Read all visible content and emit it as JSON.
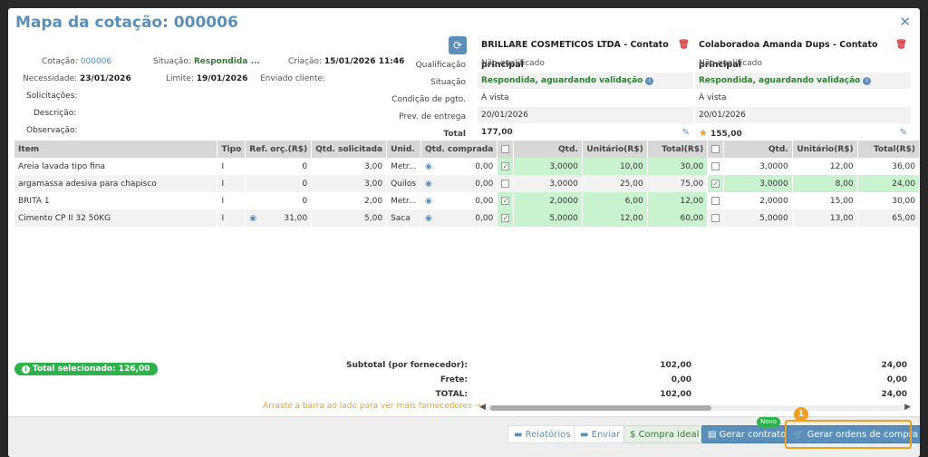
{
  "title": "Mapa da cotação: 000006",
  "header": {
    "cotacao_label": "Cotação:",
    "cotacao_value": "000006",
    "situacao_label": "Situação:",
    "situacao_value": "Respondida ...",
    "criacao_label": "Criação:",
    "criacao_value": "15/01/2026 11:46",
    "necessidade_label": "Necessidade:",
    "necessidade_value": "23/01/2026",
    "limite_label": "Limite:",
    "limite_value": "19/01/2026",
    "enviado_label": "Enviado cliente:",
    "solicitacoes_label": "Solicitações:",
    "descricao_label": "Descrição:",
    "observacao_label": "Observação:"
  },
  "qlabels": [
    "Qualificação",
    "Situação",
    "Condição de pgto.",
    "Prev. de entrega",
    "Total"
  ],
  "suppliers": [
    {
      "name": "BRILLARE COSMETICOS LTDA - Contato principal",
      "qualificacao": "Não qualificado",
      "situacao": "Respondida, aguardando validação",
      "condicao": "À vista",
      "entrega": "20/01/2026",
      "total": "177,00"
    },
    {
      "name": "Colaboradoa Amanda Dups - Contato principal",
      "qualificacao": "Não qualificado",
      "situacao": "Respondida, aguardando validação",
      "condicao": "À vista",
      "entrega": "20/01/2026",
      "total": "155,00"
    }
  ],
  "columns": {
    "item": "Item",
    "tipo": "Tipo",
    "ref": "Ref. orç.(R$)",
    "qtdsol": "Qtd. solicitada",
    "unid": "Unid.",
    "qtdcomp": "Qtd. comprada",
    "qtd": "Qtd.",
    "unit": "Unitário(R$)",
    "total": "Total(R$)"
  },
  "rows": [
    {
      "item": "Areia lavada tipo fina",
      "tipo": "I",
      "ref": "0",
      "qtdsol": "3,00",
      "unid": "Metr...",
      "qtdcomp": "0,00",
      "s1": {
        "qtd": "3,0000",
        "unit": "10,00",
        "total": "30,00"
      },
      "s2": {
        "qtd": "3,0000",
        "unit": "12,00",
        "total": "36,00"
      }
    },
    {
      "item": "argamassa adesiva para chapisco",
      "tipo": "I",
      "ref": "0",
      "qtdsol": "3,00",
      "unid": "Quilos",
      "qtdcomp": "0,00",
      "s1": {
        "qtd": "3,0000",
        "unit": "25,00",
        "total": "75,00"
      },
      "s2": {
        "qtd": "3,0000",
        "unit": "8,00",
        "total": "24,00"
      }
    },
    {
      "item": "BRITA 1",
      "tipo": "I",
      "ref": "0",
      "qtdsol": "2,00",
      "unid": "Metr...",
      "qtdcomp": "0,00",
      "s1": {
        "qtd": "2,0000",
        "unit": "6,00",
        "total": "12,00"
      },
      "s2": {
        "qtd": "2,0000",
        "unit": "15,00",
        "total": "30,00"
      }
    },
    {
      "item": "Cimento CP II 32 50KG",
      "tipo": "I",
      "ref": "31,00",
      "qtdsol": "5,00",
      "unid": "Saca",
      "qtdcomp": "0,00",
      "s1": {
        "qtd": "5,0000",
        "unit": "12,00",
        "total": "60,00"
      },
      "s2": {
        "qtd": "5,0000",
        "unit": "13,00",
        "total": "65,00"
      }
    }
  ],
  "total_selecionado": "Total selecionado:  126,00",
  "summary": {
    "subtotal_label": "Subtotal (por fornecedor):",
    "frete_label": "Frete:",
    "total_label": "TOTAL:",
    "s1": {
      "subtotal": "102,00",
      "frete": "0,00",
      "total": "102,00"
    },
    "s2": {
      "subtotal": "24,00",
      "frete": "0,00",
      "total": "24,00"
    }
  },
  "drag_hint": "Arraste a barra ao lado para ver mais fornecedores →",
  "buttons": {
    "relatorios": "Relatórios",
    "enviar": "Enviar",
    "compra_ideal": "Compra ideal",
    "gerar_contrato": "Gerar contrato",
    "novo": "Novo",
    "gerar_ordens": "Gerar ordens de compra"
  },
  "marker": "1"
}
